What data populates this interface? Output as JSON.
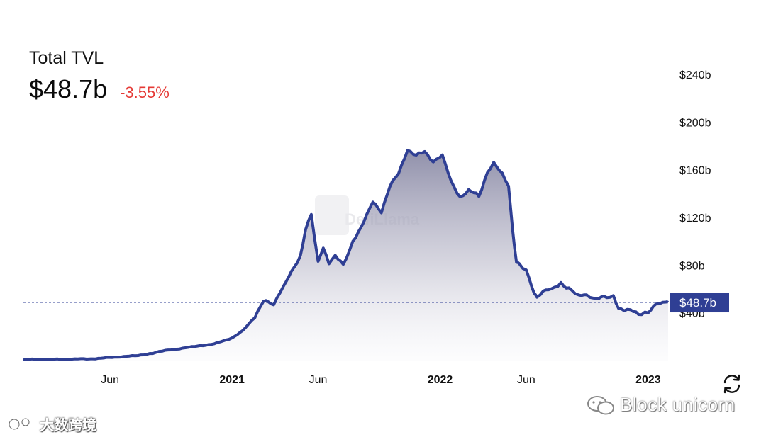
{
  "header": {
    "title": "Total TVL",
    "value": "$48.7b",
    "change": "-3.55%"
  },
  "colors": {
    "line": "#2f3f94",
    "change_negative": "#e53935",
    "label_bg": "#2f3f94"
  },
  "watermarks": {
    "center": "DefiLlama",
    "bottom_left": "大数跨境",
    "bottom_right": "Block unicorn"
  },
  "icons": {
    "refresh": "refresh-icon"
  },
  "chart_data": {
    "type": "area",
    "ylim": [
      0,
      240
    ],
    "y_ticks": [
      40,
      80,
      120,
      160,
      200,
      240
    ],
    "y_tick_labels": [
      "$40b",
      "$80b",
      "$120b",
      "$160b",
      "$200b",
      "$240b"
    ],
    "x_tick_labels": [
      {
        "label": "Jun",
        "date": "2020-06-01",
        "bold": false
      },
      {
        "label": "2021",
        "date": "2021-01-01",
        "bold": true
      },
      {
        "label": "Jun",
        "date": "2021-06-01",
        "bold": false
      },
      {
        "label": "2022",
        "date": "2022-01-01",
        "bold": true
      },
      {
        "label": "Jun",
        "date": "2022-06-01",
        "bold": false
      },
      {
        "label": "2023",
        "date": "2023-01-01",
        "bold": true
      }
    ],
    "xlim": [
      "2020-01-01",
      "2023-02-05"
    ],
    "current_value": 48.7,
    "current_label": "$48.7b",
    "x": [
      "2020-01-01",
      "2020-03-01",
      "2020-05-01",
      "2020-06-15",
      "2020-07-15",
      "2020-08-15",
      "2020-09-01",
      "2020-10-01",
      "2020-11-01",
      "2020-12-01",
      "2021-01-01",
      "2021-01-20",
      "2021-02-10",
      "2021-02-25",
      "2021-03-15",
      "2021-04-01",
      "2021-04-15",
      "2021-05-01",
      "2021-05-10",
      "2021-05-20",
      "2021-06-01",
      "2021-06-10",
      "2021-06-20",
      "2021-07-01",
      "2021-07-15",
      "2021-08-01",
      "2021-08-20",
      "2021-09-05",
      "2021-09-20",
      "2021-10-05",
      "2021-10-20",
      "2021-11-05",
      "2021-11-20",
      "2021-12-05",
      "2021-12-20",
      "2022-01-05",
      "2022-01-20",
      "2022-02-05",
      "2022-02-20",
      "2022-03-10",
      "2022-03-25",
      "2022-04-05",
      "2022-04-20",
      "2022-05-01",
      "2022-05-08",
      "2022-05-15",
      "2022-05-20",
      "2022-06-01",
      "2022-06-15",
      "2022-06-20",
      "2022-07-01",
      "2022-07-15",
      "2022-08-01",
      "2022-08-15",
      "2022-09-01",
      "2022-09-15",
      "2022-10-01",
      "2022-10-15",
      "2022-11-01",
      "2022-11-10",
      "2022-11-20",
      "2022-12-01",
      "2022-12-15",
      "2023-01-01",
      "2023-01-15",
      "2023-02-01",
      "2023-02-05"
    ],
    "values": [
      1.0,
      1.0,
      1.5,
      3.0,
      4.0,
      6.0,
      8.0,
      10.0,
      12.0,
      14.0,
      19.0,
      25.0,
      37.0,
      50.0,
      47.0,
      62.0,
      74.0,
      88.0,
      110.0,
      122.0,
      82.0,
      95.0,
      82.0,
      88.0,
      80.0,
      100.0,
      116.0,
      133.0,
      125.0,
      146.0,
      157.0,
      177.0,
      172.0,
      175.0,
      167.0,
      172.0,
      150.0,
      137.0,
      143.0,
      138.0,
      157.0,
      165.0,
      157.0,
      147.0,
      110.0,
      82.0,
      80.0,
      75.0,
      57.0,
      53.0,
      58.0,
      60.0,
      65.0,
      60.0,
      54.0,
      55.0,
      52.0,
      53.0,
      54.0,
      44.0,
      42.0,
      42.0,
      39.0,
      41.0,
      47.0,
      49.0,
      48.7
    ]
  }
}
